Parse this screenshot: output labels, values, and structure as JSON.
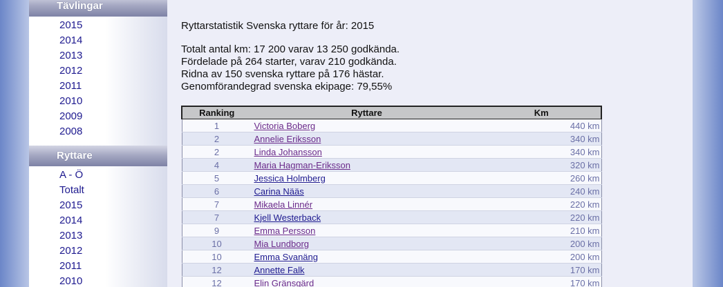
{
  "sidebar": {
    "sections": [
      {
        "header": "Tävlingar",
        "items": [
          "2015",
          "2014",
          "2013",
          "2012",
          "2011",
          "2010",
          "2009",
          "2008"
        ]
      },
      {
        "header": "Ryttare",
        "items": [
          "A - Ö",
          "Totalt",
          "2015",
          "2014",
          "2013",
          "2012",
          "2011",
          "2010"
        ]
      }
    ]
  },
  "stats": {
    "title": "Ryttarstatistik Svenska ryttare för år: 2015",
    "lines": [
      "Totalt antal km: 17 200 varav 13 250 godkända.",
      "Fördelade på 264 starter, varav 210 godkända.",
      "Ridna av 150 svenska ryttare på 176 hästar.",
      "Genomförandegrad svenska ekipage: 79,55%"
    ]
  },
  "table": {
    "headers": [
      "Ranking",
      "Ryttare",
      "Km"
    ],
    "rows": [
      {
        "rank": "1",
        "name": "Victoria Boberg",
        "km": "440 km",
        "visited": true
      },
      {
        "rank": "2",
        "name": "Annelie Eriksson",
        "km": "340 km",
        "visited": true
      },
      {
        "rank": "2",
        "name": "Linda Johansson",
        "km": "340 km",
        "visited": true
      },
      {
        "rank": "4",
        "name": "Maria Hagman-Eriksson",
        "km": "320 km",
        "visited": true
      },
      {
        "rank": "5",
        "name": "Jessica Holmberg",
        "km": "260 km",
        "visited": false
      },
      {
        "rank": "6",
        "name": "Carina Nääs",
        "km": "240 km",
        "visited": false
      },
      {
        "rank": "7",
        "name": "Mikaela Linnér",
        "km": "220 km",
        "visited": true
      },
      {
        "rank": "7",
        "name": "Kjell Westerback",
        "km": "220 km",
        "visited": false
      },
      {
        "rank": "9",
        "name": "Emma Persson",
        "km": "210 km",
        "visited": true
      },
      {
        "rank": "10",
        "name": "Mia Lundborg",
        "km": "200 km",
        "visited": true
      },
      {
        "rank": "10",
        "name": "Emma Svanäng",
        "km": "200 km",
        "visited": false
      },
      {
        "rank": "12",
        "name": "Annette Falk",
        "km": "170 km",
        "visited": false
      },
      {
        "rank": "12",
        "name": "Elin Gränsgärd",
        "km": "170 km",
        "visited": true
      }
    ]
  }
}
